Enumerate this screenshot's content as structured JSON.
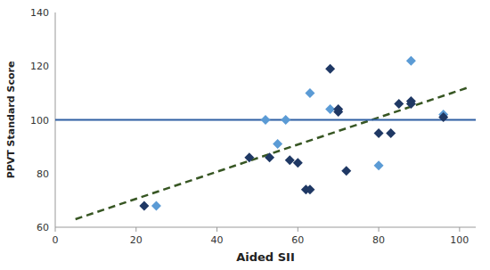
{
  "chart_data": {
    "type": "scatter",
    "xlabel": "Aided SII",
    "ylabel": "PPVT Standard Score",
    "xlim": [
      0,
      104
    ],
    "ylim": [
      60,
      140
    ],
    "xticks": [
      0,
      20,
      40,
      60,
      80,
      100
    ],
    "yticks": [
      60,
      80,
      100,
      120,
      140
    ],
    "grid": false,
    "series": [
      {
        "type": "line",
        "color": "#375623",
        "line_style": "dashed",
        "x": [
          5,
          102
        ],
        "values": [
          63,
          112
        ]
      },
      {
        "type": "hline",
        "color": "#2e5fa3",
        "line_style": "solid",
        "values": [
          100
        ]
      },
      {
        "type": "scatter",
        "color": "#5b9bd5",
        "marker": "diamond",
        "x": [
          25,
          52,
          57,
          55,
          63,
          68,
          80,
          88,
          96
        ],
        "values": [
          68,
          100,
          100,
          91,
          110,
          104,
          83,
          122,
          102
        ]
      },
      {
        "type": "scatter",
        "color": "#1f3864",
        "marker": "diamond",
        "x": [
          22,
          48,
          53,
          58,
          60,
          62,
          63,
          68,
          70,
          70,
          72,
          80,
          83,
          85,
          88,
          88,
          96
        ],
        "values": [
          68,
          86,
          86,
          85,
          84,
          74,
          74,
          119,
          103,
          104,
          81,
          95,
          95,
          106,
          107,
          106,
          101
        ]
      }
    ]
  }
}
